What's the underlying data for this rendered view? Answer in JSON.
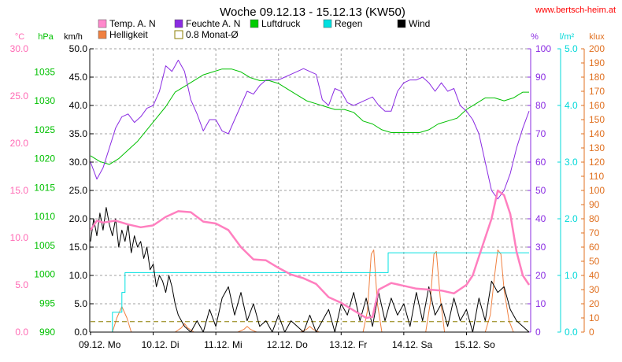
{
  "chart_data": {
    "type": "line",
    "title": "Woche 09.12.13 - 15.12.13 (KW50)",
    "source": "www.bertsch-heim.at",
    "x_tick_labels": [
      "09.12. Mo",
      "10.12. Di",
      "11.12. Mi",
      "12.12. Do",
      "13.12. Fr",
      "14.12. Sa",
      "15.12. So"
    ],
    "x_range_days": [
      0,
      7
    ],
    "axes": [
      {
        "id": "temp",
        "unit": "°C",
        "side": "left",
        "color": "#ff69b4",
        "range": [
          0,
          30
        ],
        "ticks": [
          "0.0",
          "5.0",
          "10.0",
          "15.0",
          "20.0",
          "25.0",
          "30.0"
        ]
      },
      {
        "id": "pressure",
        "unit": "hPa",
        "side": "left",
        "color": "#00c000",
        "range": [
          990,
          1039
        ],
        "ticks": [
          "990",
          "995",
          "1000",
          "1005",
          "1010",
          "1015",
          "1020",
          "1025",
          "1030",
          "1035"
        ]
      },
      {
        "id": "wind",
        "unit": "km/h",
        "side": "left",
        "color": "#000000",
        "range": [
          0,
          50
        ],
        "ticks": [
          "0.0",
          "5.0",
          "10.0",
          "15.0",
          "20.0",
          "25.0",
          "30.0",
          "35.0",
          "40.0",
          "45.0",
          "50.0"
        ]
      },
      {
        "id": "humidity",
        "unit": "%",
        "side": "right",
        "color": "#8a2be2",
        "range": [
          0,
          100
        ],
        "ticks": [
          "0",
          "10",
          "20",
          "30",
          "40",
          "50",
          "60",
          "70",
          "80",
          "90",
          "100"
        ]
      },
      {
        "id": "rain",
        "unit": "l/m²",
        "side": "right",
        "color": "#00d8d8",
        "range": [
          0,
          5
        ],
        "ticks": [
          "0.0",
          "1.0",
          "2.0",
          "3.0",
          "4.0",
          "5.0"
        ]
      },
      {
        "id": "light",
        "unit": "klux",
        "side": "right",
        "color": "#e07020",
        "range": [
          0,
          200
        ],
        "ticks": [
          "0",
          "10",
          "20",
          "30",
          "40",
          "50",
          "60",
          "70",
          "80",
          "90",
          "100",
          "110",
          "120",
          "130",
          "140",
          "150",
          "160",
          "170",
          "180",
          "190",
          "200"
        ]
      }
    ],
    "legend": [
      {
        "label": "Temp. A. N",
        "color": "#ff88cc",
        "style": "filled"
      },
      {
        "label": "Feuchte A. N",
        "color": "#8a2be2",
        "style": "filled"
      },
      {
        "label": "Luftdruck",
        "color": "#00cc00",
        "style": "filled"
      },
      {
        "label": "Regen",
        "color": "#00e0e0",
        "style": "filled"
      },
      {
        "label": "Wind",
        "color": "#000000",
        "style": "filled"
      },
      {
        "label": "Helligkeit",
        "color": "#f08040",
        "style": "filled"
      },
      {
        "label": "0.8 Monat-Ø",
        "color": "#8b7d00",
        "style": "outline"
      }
    ],
    "series": [
      {
        "name": "Temp. A. N",
        "axis": "temp",
        "color": "#ff7fbf",
        "x": [
          0,
          0.1,
          0.2,
          0.4,
          0.6,
          0.8,
          1.0,
          1.2,
          1.4,
          1.6,
          1.8,
          2.0,
          2.2,
          2.4,
          2.6,
          2.8,
          3.0,
          3.2,
          3.4,
          3.6,
          3.8,
          4.0,
          4.2,
          4.4,
          4.5,
          4.6,
          4.8,
          5.0,
          5.2,
          5.4,
          5.6,
          5.8,
          6.0,
          6.1,
          6.2,
          6.3,
          6.4,
          6.5,
          6.6,
          6.7,
          6.8,
          6.9,
          7.0
        ],
        "y": [
          10.8,
          11.8,
          11.6,
          11.8,
          11.4,
          11.1,
          11.3,
          12.2,
          12.8,
          12.7,
          11.7,
          11.5,
          10.8,
          9.0,
          7.7,
          7.6,
          6.8,
          6.1,
          5.7,
          5.1,
          3.7,
          3.1,
          2.3,
          1.5,
          1.6,
          4.5,
          5.2,
          4.9,
          4.6,
          4.5,
          4.4,
          4.1,
          5.0,
          6.0,
          8.0,
          10.0,
          12.0,
          15.0,
          14.5,
          12.5,
          8.5,
          6.0,
          5.0
        ]
      },
      {
        "name": "Feuchte A. N",
        "axis": "humidity",
        "color": "#8a2be2",
        "x": [
          0,
          0.1,
          0.2,
          0.3,
          0.4,
          0.5,
          0.6,
          0.7,
          0.8,
          0.9,
          1.0,
          1.1,
          1.2,
          1.3,
          1.4,
          1.5,
          1.6,
          1.7,
          1.8,
          1.9,
          2.0,
          2.1,
          2.2,
          2.3,
          2.4,
          2.5,
          2.6,
          2.7,
          2.8,
          2.9,
          3.0,
          3.1,
          3.2,
          3.3,
          3.4,
          3.5,
          3.6,
          3.7,
          3.8,
          3.9,
          4.0,
          4.1,
          4.2,
          4.3,
          4.4,
          4.5,
          4.6,
          4.7,
          4.8,
          4.9,
          5.0,
          5.1,
          5.2,
          5.3,
          5.4,
          5.5,
          5.6,
          5.7,
          5.8,
          5.9,
          6.0,
          6.1,
          6.2,
          6.3,
          6.4,
          6.5,
          6.6,
          6.7,
          6.8,
          6.9,
          7.0
        ],
        "y": [
          60,
          54,
          58,
          65,
          72,
          76,
          77,
          74,
          76,
          79,
          80,
          85,
          94,
          92,
          96,
          92,
          82,
          77,
          71,
          75,
          75,
          71,
          70,
          75,
          80,
          85,
          84,
          87,
          89,
          89,
          89,
          90,
          91,
          92,
          93,
          92,
          91,
          82,
          80,
          86,
          85,
          81,
          80,
          81,
          82,
          83,
          80,
          78,
          78,
          85,
          88,
          89,
          89,
          90,
          88,
          85,
          88,
          85,
          86,
          80,
          78,
          75,
          70,
          60,
          50,
          47,
          50,
          56,
          65,
          72,
          78
        ]
      },
      {
        "name": "Luftdruck",
        "axis": "pressure",
        "color": "#00c000",
        "x": [
          0,
          0.15,
          0.3,
          0.45,
          0.6,
          0.75,
          0.9,
          1.05,
          1.2,
          1.35,
          1.5,
          1.65,
          1.8,
          1.95,
          2.1,
          2.25,
          2.4,
          2.55,
          2.7,
          2.85,
          3.0,
          3.15,
          3.3,
          3.45,
          3.6,
          3.75,
          3.9,
          4.05,
          4.2,
          4.35,
          4.5,
          4.65,
          4.8,
          4.95,
          5.1,
          5.25,
          5.4,
          5.55,
          5.7,
          5.85,
          6.0,
          6.15,
          6.3,
          6.45,
          6.6,
          6.75,
          6.9,
          7.0
        ],
        "y": [
          1020.5,
          1019.5,
          1019.0,
          1020.0,
          1021.5,
          1023.0,
          1025.0,
          1027.0,
          1029.0,
          1031.5,
          1032.5,
          1033.5,
          1034.5,
          1035.0,
          1035.5,
          1035.5,
          1035.0,
          1034.0,
          1033.5,
          1033.5,
          1033.0,
          1032.0,
          1031.0,
          1030.0,
          1029.5,
          1029.0,
          1028.5,
          1028.5,
          1028.0,
          1026.5,
          1026.0,
          1025.0,
          1024.5,
          1024.5,
          1024.5,
          1024.5,
          1025.0,
          1026.0,
          1026.5,
          1027.0,
          1028.5,
          1029.5,
          1030.5,
          1030.5,
          1030.0,
          1030.5,
          1031.5,
          1031.5
        ]
      },
      {
        "name": "Regen",
        "axis": "rain",
        "color": "#00e0e0",
        "x": [
          0,
          0.2,
          0.35,
          0.35,
          0.5,
          0.5,
          0.55,
          0.55,
          4.65,
          4.75,
          4.75,
          7.0
        ],
        "y": [
          0,
          0,
          0,
          0.35,
          0.35,
          0.7,
          0.7,
          1.05,
          1.05,
          1.05,
          1.4,
          1.4
        ]
      },
      {
        "name": "Helligkeit",
        "axis": "light",
        "color": "#f08040",
        "x": [
          0.35,
          0.42,
          0.5,
          0.58,
          0.65,
          1.35,
          1.45,
          1.5,
          1.55,
          1.65,
          2.35,
          2.45,
          2.5,
          2.55,
          2.65,
          3.35,
          3.45,
          3.5,
          3.55,
          3.65,
          4.35,
          4.42,
          4.48,
          4.52,
          4.58,
          4.65,
          5.35,
          5.42,
          5.48,
          5.52,
          5.58,
          5.65,
          6.3,
          6.38,
          6.45,
          6.5,
          6.55,
          6.6,
          6.68,
          6.75
        ],
        "y": [
          0,
          10,
          18,
          10,
          0,
          0,
          3,
          6,
          3,
          0,
          0,
          2,
          4,
          2,
          0,
          0,
          2,
          4,
          2,
          0,
          0,
          15,
          55,
          58,
          20,
          0,
          0,
          20,
          55,
          57,
          25,
          0,
          0,
          12,
          40,
          58,
          55,
          30,
          8,
          0
        ]
      },
      {
        "name": "Wind",
        "axis": "wind",
        "color": "#000000",
        "x": [
          0,
          0.05,
          0.1,
          0.15,
          0.2,
          0.25,
          0.3,
          0.35,
          0.4,
          0.45,
          0.5,
          0.55,
          0.6,
          0.65,
          0.7,
          0.75,
          0.8,
          0.85,
          0.9,
          0.95,
          1.0,
          1.05,
          1.1,
          1.15,
          1.2,
          1.25,
          1.3,
          1.35,
          1.4,
          1.5,
          1.6,
          1.7,
          1.8,
          1.9,
          2.0,
          2.1,
          2.2,
          2.3,
          2.4,
          2.5,
          2.6,
          2.7,
          2.8,
          2.9,
          3.0,
          3.1,
          3.2,
          3.3,
          3.4,
          3.5,
          3.6,
          3.7,
          3.8,
          3.9,
          4.0,
          4.1,
          4.2,
          4.3,
          4.4,
          4.5,
          4.6,
          4.7,
          4.8,
          4.9,
          5.0,
          5.1,
          5.2,
          5.3,
          5.4,
          5.5,
          5.6,
          5.7,
          5.8,
          5.9,
          6.0,
          6.1,
          6.2,
          6.3,
          6.4,
          6.5,
          6.6,
          6.7,
          6.8,
          6.9,
          7.0
        ],
        "y": [
          16,
          20,
          17,
          21,
          18,
          22,
          19,
          17,
          20,
          15,
          18,
          16,
          19,
          14,
          17,
          15,
          16,
          13,
          15,
          11,
          12,
          8,
          10,
          9,
          7,
          10,
          8,
          5,
          3,
          1,
          0,
          2,
          0,
          4,
          1,
          6,
          8,
          3,
          7,
          2,
          5,
          1,
          2,
          0,
          3,
          0,
          2,
          1,
          0,
          3,
          0,
          2,
          4,
          0,
          5,
          3,
          7,
          2,
          6,
          1,
          7,
          2,
          6,
          3,
          5,
          1,
          7,
          2,
          8,
          3,
          5,
          1,
          6,
          2,
          4,
          0,
          6,
          2,
          9,
          7,
          8,
          4,
          2,
          1,
          0
        ]
      },
      {
        "name": "0.8 Monat-Ø",
        "axis": "temp",
        "color": "#8b7d00",
        "style": "dashed",
        "x": [
          0,
          7
        ],
        "y": [
          1.1,
          1.1
        ]
      }
    ]
  }
}
